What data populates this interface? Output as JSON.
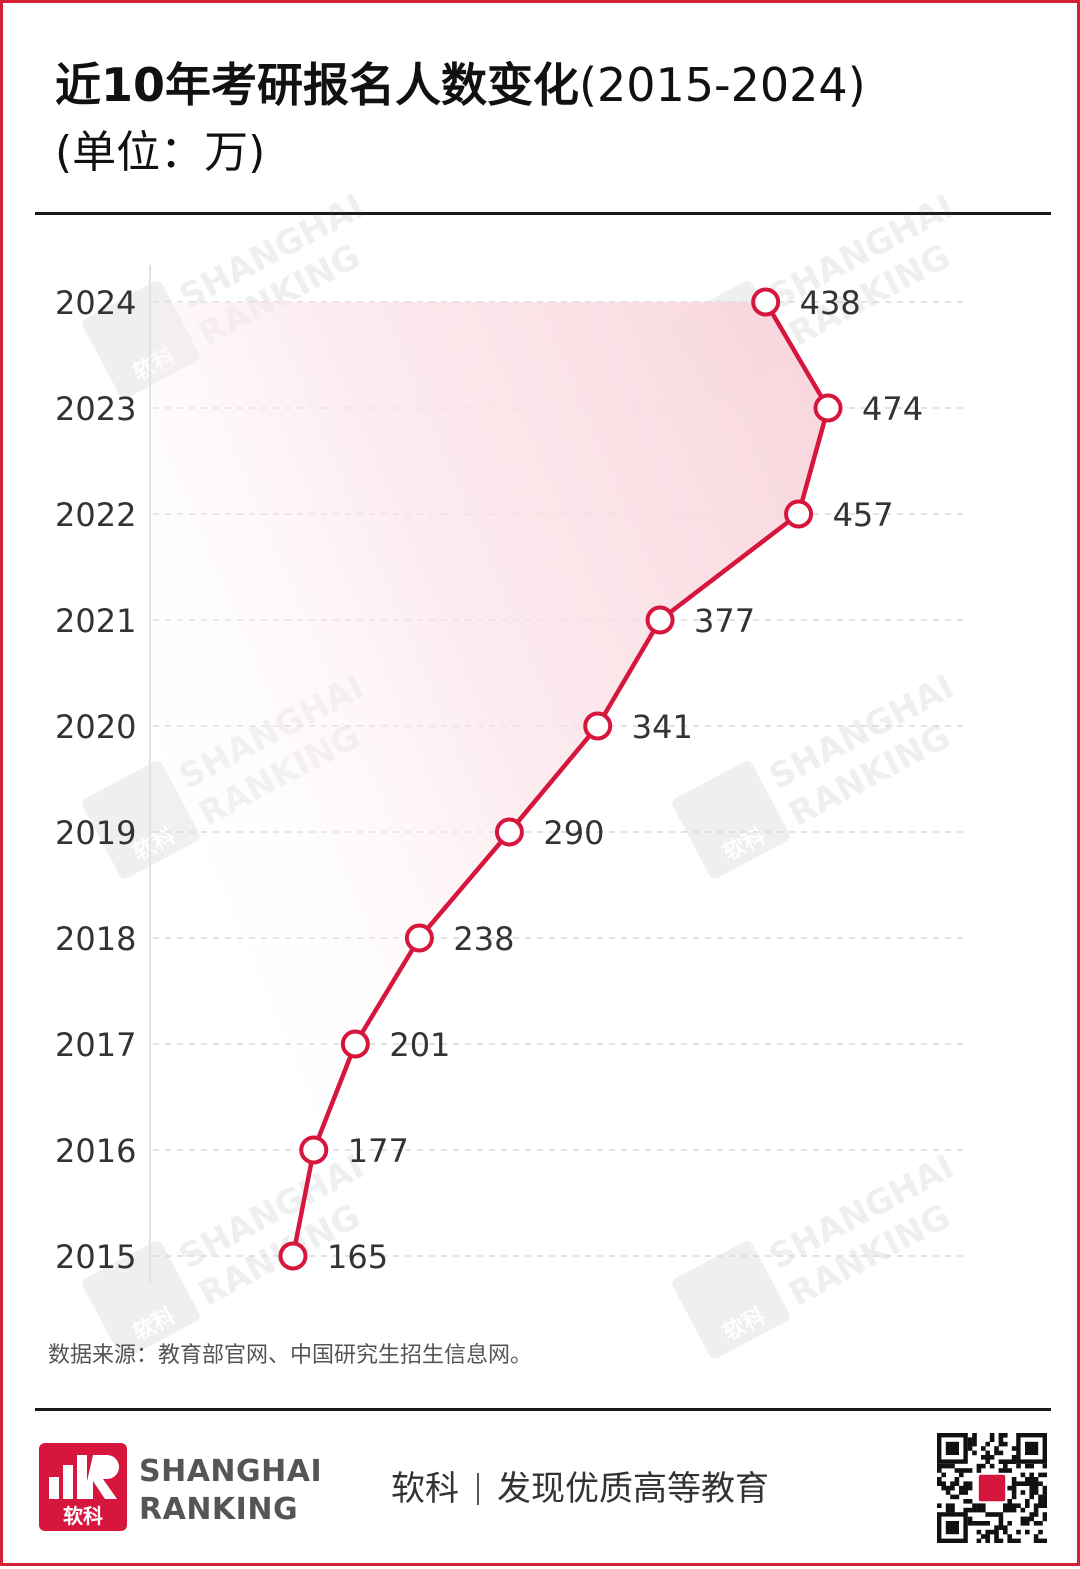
{
  "title": {
    "main": "近10年考研报名人数变化",
    "range": "(2015-2024)",
    "unit": "(单位：万)"
  },
  "chart_data": {
    "type": "line",
    "orientation": "horizontal",
    "categories": [
      "2015",
      "2016",
      "2017",
      "2018",
      "2019",
      "2020",
      "2021",
      "2022",
      "2023",
      "2024"
    ],
    "values": [
      165,
      177,
      201,
      238,
      290,
      341,
      377,
      457,
      474,
      438
    ],
    "xlabel": "",
    "ylabel": "",
    "grid": true,
    "colors": {
      "line": "#d6163c",
      "fill_top": "#fbe1e6",
      "marker_fill": "#ffffff"
    }
  },
  "watermark": {
    "line1": "SHANGHAI",
    "line2": "RANKING",
    "logo_text": "软科"
  },
  "source": "数据来源：教育部官网、中国研究生招生信息网。",
  "footer": {
    "logo_text": "软科",
    "brand_line1": "SHANGHAI",
    "brand_line2": "RANKING",
    "slogan_brand": "软科",
    "slogan_text": "发现优质高等教育",
    "qr_icon": "qr-code-icon"
  }
}
